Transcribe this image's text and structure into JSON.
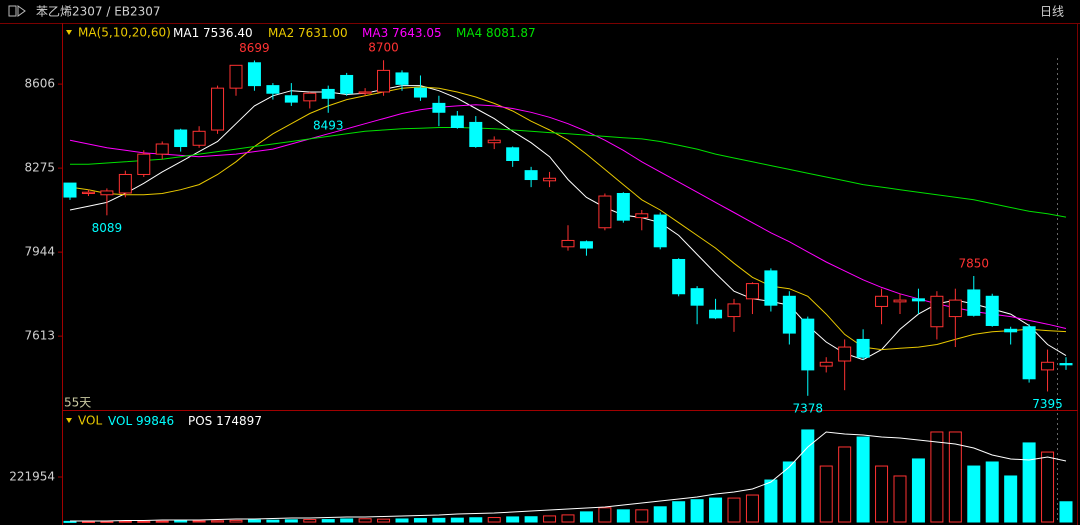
{
  "header": {
    "symbol": "苯乙烯2307 / EB2307",
    "period": "日线"
  },
  "chart_data": [
    {
      "type": "candlestick",
      "indicator": "MA(5,10,20,60)",
      "range_label": "55天",
      "up_color": "#ff3232",
      "down_color": "#00ffff",
      "ylim": [
        7322,
        8827
      ],
      "yticks": [
        7613,
        7944,
        8275,
        8606
      ],
      "open": [
        8216,
        8175,
        8170,
        8177,
        8250,
        8330,
        8425,
        8365,
        8425,
        8590,
        8690,
        8600,
        8560,
        8540,
        8585,
        8640,
        8570,
        8575,
        8650,
        8590,
        8530,
        8480,
        8455,
        8375,
        8355,
        8265,
        8225,
        7965,
        7985,
        8040,
        8175,
        8080,
        8090,
        7915,
        7800,
        7715,
        7690,
        7760,
        7870,
        7770,
        7680,
        7495,
        7515,
        7600,
        7730,
        7748,
        7760,
        7650,
        7690,
        7795,
        7770,
        7640,
        7650,
        7480,
        7505
      ],
      "high": [
        8216,
        8190,
        8195,
        8265,
        8345,
        8380,
        8430,
        8440,
        8600,
        8680,
        8699,
        8610,
        8610,
        8575,
        8600,
        8650,
        8590,
        8700,
        8660,
        8640,
        8560,
        8500,
        8480,
        8400,
        8360,
        8280,
        8260,
        8050,
        7990,
        8175,
        8180,
        8110,
        8100,
        7920,
        7810,
        7760,
        7760,
        7825,
        7880,
        7790,
        7690,
        7530,
        7600,
        7640,
        7800,
        7780,
        7800,
        7790,
        7800,
        7850,
        7780,
        7650,
        7660,
        7560,
        7530
      ],
      "low": [
        8150,
        8165,
        8089,
        8160,
        8240,
        8310,
        8340,
        8355,
        8410,
        8560,
        8580,
        8545,
        8520,
        8510,
        8493,
        8560,
        8560,
        8560,
        8580,
        8540,
        8440,
        8430,
        8355,
        8350,
        8280,
        8200,
        8200,
        7950,
        7930,
        8030,
        8060,
        8030,
        7955,
        7770,
        7660,
        7680,
        7630,
        7700,
        7710,
        7580,
        7378,
        7470,
        7400,
        7520,
        7660,
        7700,
        7700,
        7600,
        7570,
        7690,
        7650,
        7580,
        7430,
        7395,
        7480
      ],
      "close": [
        8161,
        8180,
        8185,
        8250,
        8330,
        8370,
        8360,
        8420,
        8590,
        8680,
        8600,
        8570,
        8535,
        8570,
        8550,
        8570,
        8575,
        8660,
        8605,
        8555,
        8495,
        8435,
        8360,
        8385,
        8305,
        8230,
        8235,
        7990,
        7960,
        8165,
        8070,
        8095,
        7965,
        7780,
        7735,
        7685,
        7740,
        7820,
        7735,
        7625,
        7480,
        7510,
        7570,
        7530,
        7770,
        7755,
        7752,
        7770,
        7755,
        7695,
        7655,
        7630,
        7445,
        7510,
        7500
      ],
      "extremes": [
        8089,
        8699,
        8493,
        8700,
        7378,
        7850,
        7395
      ],
      "series": [
        {
          "name": "MA1",
          "color": "#ffffff",
          "values": [
            8110,
            8125,
            8140,
            8175,
            8215,
            8260,
            8300,
            8340,
            8380,
            8450,
            8520,
            8560,
            8580,
            8575,
            8575,
            8565,
            8570,
            8585,
            8600,
            8600,
            8580,
            8550,
            8510,
            8470,
            8420,
            8375,
            8320,
            8230,
            8160,
            8120,
            8090,
            8080,
            8060,
            8010,
            7935,
            7860,
            7790,
            7760,
            7750,
            7735,
            7655,
            7590,
            7545,
            7520,
            7560,
            7640,
            7700,
            7740,
            7755,
            7740,
            7720,
            7700,
            7655,
            7580,
            7536.4
          ],
          "value_labels": [
            null,
            null,
            null,
            null,
            null,
            null,
            null,
            null,
            null,
            null,
            null,
            null,
            null,
            null,
            null,
            null,
            null,
            null,
            null,
            null,
            null,
            null,
            null,
            null,
            null,
            null,
            null,
            null,
            null,
            null,
            null,
            null,
            null,
            null,
            null,
            null,
            null,
            null,
            null,
            null,
            null,
            null,
            null,
            null,
            null,
            null,
            null,
            null,
            null,
            null,
            null,
            null,
            null,
            null,
            "7536.40"
          ]
        },
        {
          "name": "MA2",
          "color": "#e8c800",
          "values": [
            8200,
            8190,
            8175,
            8170,
            8170,
            8175,
            8190,
            8210,
            8250,
            8300,
            8360,
            8410,
            8450,
            8490,
            8520,
            8545,
            8560,
            8575,
            8590,
            8595,
            8590,
            8575,
            8555,
            8530,
            8500,
            8460,
            8425,
            8385,
            8330,
            8270,
            8210,
            8150,
            8110,
            8060,
            8010,
            7960,
            7900,
            7845,
            7810,
            7800,
            7770,
            7700,
            7620,
            7570,
            7560,
            7565,
            7570,
            7580,
            7600,
            7620,
            7630,
            7635,
            7640,
            7635,
            7631
          ],
          "value_labels": [
            null,
            null,
            null,
            null,
            null,
            null,
            null,
            null,
            null,
            null,
            null,
            null,
            null,
            null,
            null,
            null,
            null,
            null,
            null,
            null,
            null,
            null,
            null,
            null,
            null,
            null,
            null,
            null,
            null,
            null,
            null,
            null,
            null,
            null,
            null,
            null,
            null,
            null,
            null,
            null,
            null,
            null,
            null,
            null,
            null,
            null,
            null,
            null,
            null,
            null,
            null,
            null,
            null,
            null,
            "7631.00"
          ]
        },
        {
          "name": "MA3",
          "color": "#ff00ff",
          "values": [
            8385,
            8370,
            8355,
            8345,
            8335,
            8330,
            8325,
            8320,
            8325,
            8330,
            8340,
            8350,
            8370,
            8390,
            8410,
            8430,
            8450,
            8470,
            8490,
            8505,
            8515,
            8520,
            8525,
            8520,
            8510,
            8495,
            8475,
            8450,
            8420,
            8385,
            8345,
            8300,
            8260,
            8220,
            8180,
            8140,
            8100,
            8060,
            8020,
            7985,
            7945,
            7905,
            7870,
            7835,
            7805,
            7780,
            7760,
            7740,
            7725,
            7710,
            7700,
            7690,
            7675,
            7660,
            7643.05
          ],
          "value_labels": [
            null,
            null,
            null,
            null,
            null,
            null,
            null,
            null,
            null,
            null,
            null,
            null,
            null,
            null,
            null,
            null,
            null,
            null,
            null,
            null,
            null,
            null,
            null,
            null,
            null,
            null,
            null,
            null,
            null,
            null,
            null,
            null,
            null,
            null,
            null,
            null,
            null,
            null,
            null,
            null,
            null,
            null,
            null,
            null,
            null,
            null,
            null,
            null,
            null,
            null,
            null,
            null,
            null,
            null,
            "7643.05"
          ]
        },
        {
          "name": "MA4",
          "color": "#00e000",
          "values": [
            8290,
            8290,
            8295,
            8300,
            8305,
            8310,
            8320,
            8330,
            8340,
            8350,
            8360,
            8370,
            8380,
            8390,
            8400,
            8410,
            8420,
            8425,
            8430,
            8432,
            8435,
            8435,
            8433,
            8430,
            8425,
            8420,
            8415,
            8410,
            8405,
            8400,
            8395,
            8390,
            8380,
            8365,
            8350,
            8330,
            8315,
            8300,
            8285,
            8270,
            8255,
            8240,
            8225,
            8210,
            8200,
            8190,
            8180,
            8170,
            8160,
            8150,
            8135,
            8120,
            8105,
            8095,
            8081.87
          ],
          "value_labels": [
            null,
            null,
            null,
            null,
            null,
            null,
            null,
            null,
            null,
            null,
            null,
            null,
            null,
            null,
            null,
            null,
            null,
            null,
            null,
            null,
            null,
            null,
            null,
            null,
            null,
            null,
            null,
            null,
            null,
            null,
            null,
            null,
            null,
            null,
            null,
            null,
            null,
            null,
            null,
            null,
            null,
            null,
            null,
            null,
            null,
            null,
            null,
            null,
            null,
            null,
            null,
            null,
            null,
            null,
            "8081.87"
          ]
        }
      ]
    },
    {
      "type": "bar",
      "indicator": "VOL",
      "ylim": [
        0,
        463600
      ],
      "yticks": [
        221954
      ],
      "y2lim": [
        0,
        269500
      ],
      "series": [
        {
          "name": "VOL",
          "color": "#00ffff",
          "values": [
            3000,
            2500,
            3000,
            4000,
            3500,
            4000,
            5000,
            5000,
            6000,
            8000,
            10000,
            9000,
            11000,
            12000,
            12000,
            15000,
            16000,
            14000,
            15000,
            17000,
            18000,
            19000,
            21000,
            22000,
            25000,
            26000,
            30000,
            35000,
            50000,
            70000,
            60000,
            60000,
            75000,
            100000,
            110000,
            118000,
            118000,
            133000,
            207000,
            296000,
            454000,
            276000,
            370000,
            419000,
            276000,
            227000,
            311000,
            444000,
            444000,
            276000,
            296000,
            227000,
            390000,
            345000,
            99846
          ]
        },
        {
          "name": "POS",
          "color": "#ffffff",
          "axis": "y2",
          "values": [
            2900,
            2900,
            2900,
            4300,
            4300,
            5700,
            5700,
            5700,
            7200,
            8600,
            8600,
            10000,
            11500,
            11500,
            12900,
            14300,
            14300,
            15800,
            17200,
            18600,
            20100,
            22900,
            24400,
            25800,
            28700,
            31500,
            34400,
            37300,
            40100,
            43000,
            48700,
            54500,
            60200,
            65900,
            71700,
            80300,
            86000,
            94600,
            114700,
            157700,
            215000,
            258000,
            252300,
            249400,
            243700,
            240800,
            235100,
            229400,
            223600,
            212200,
            192100,
            180600,
            177800,
            186400,
            174897
          ]
        }
      ]
    }
  ]
}
